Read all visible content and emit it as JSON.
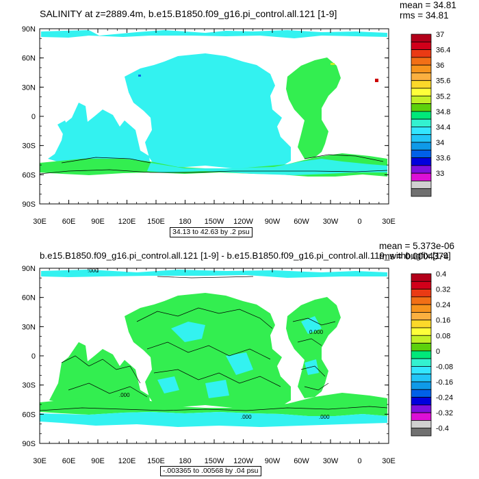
{
  "panels": [
    {
      "title": "SALINITY at z=2889.4m, b.e15.B1850.f09_g16.pi_control.all.121 [1-9]",
      "mean_label": "mean = 34.81",
      "rms_label": "rms = 34.81",
      "range_label": "34.13 to 42.63 by .2 psu",
      "colorbar": {
        "tick_labels": [
          "37",
          "36.4",
          "36",
          "35.6",
          "35.2",
          "34.8",
          "34.4",
          "34",
          "33.6",
          "33"
        ],
        "colors": [
          "#b3001a",
          "#d1001a",
          "#ea3a14",
          "#f26f16",
          "#f7941d",
          "#fbb040",
          "#fcd82a",
          "#ffff3a",
          "#c2ef27",
          "#5cd10c",
          "#00e87a",
          "#33f2d0",
          "#33e6ff",
          "#22c5f7",
          "#0f9ae8",
          "#0060e8",
          "#0000dd",
          "#7f10df",
          "#dd10d6",
          "#d0d0d0",
          "#707070"
        ]
      },
      "contour_labels": []
    },
    {
      "title": "b.e15.B1850.f09_g16.pi_control.all.121 [1-9] - b.e15.B1850.f09_g16.pi_control.all.119_withbugfix [1-9]",
      "mean_label": "mean = 5.373e-06",
      "rms_label": "rms = 0.0004374",
      "range_label": "-.003365 to .00568 by .04 psu",
      "colorbar": {
        "tick_labels": [
          "0.4",
          "0.32",
          "0.24",
          "0.16",
          "0.08",
          "0",
          "-0.08",
          "-0.16",
          "-0.24",
          "-0.32",
          "-0.4"
        ],
        "colors": [
          "#b3001a",
          "#d1001a",
          "#ea3a14",
          "#f26f16",
          "#f7941d",
          "#fbb040",
          "#fcd82a",
          "#ffff3a",
          "#c2ef27",
          "#5cd10c",
          "#00e87a",
          "#33f2d0",
          "#33e6ff",
          "#22c5f7",
          "#0f9ae8",
          "#0060e8",
          "#0000dd",
          "#7f10df",
          "#dd10d6",
          "#d0d0d0",
          "#707070"
        ]
      },
      "contour_labels": [
        ".000",
        "0.000",
        ".000",
        ".000",
        ".000"
      ]
    }
  ],
  "axes": {
    "lat_labels": [
      "90N",
      "60N",
      "30N",
      "0",
      "30S",
      "60S",
      "90S"
    ],
    "lon_labels": [
      "30E",
      "60E",
      "90E",
      "120E",
      "150E",
      "180",
      "150W",
      "120W",
      "90W",
      "60W",
      "30W",
      "0",
      "30E"
    ]
  },
  "colors": {
    "ocean_low": "#33f2f0",
    "ocean_mid": "#33ee50",
    "ocean_high_spot": "#c2ef27",
    "hot_spot": "#cc0000",
    "blue_spot": "#0f6ae8"
  }
}
